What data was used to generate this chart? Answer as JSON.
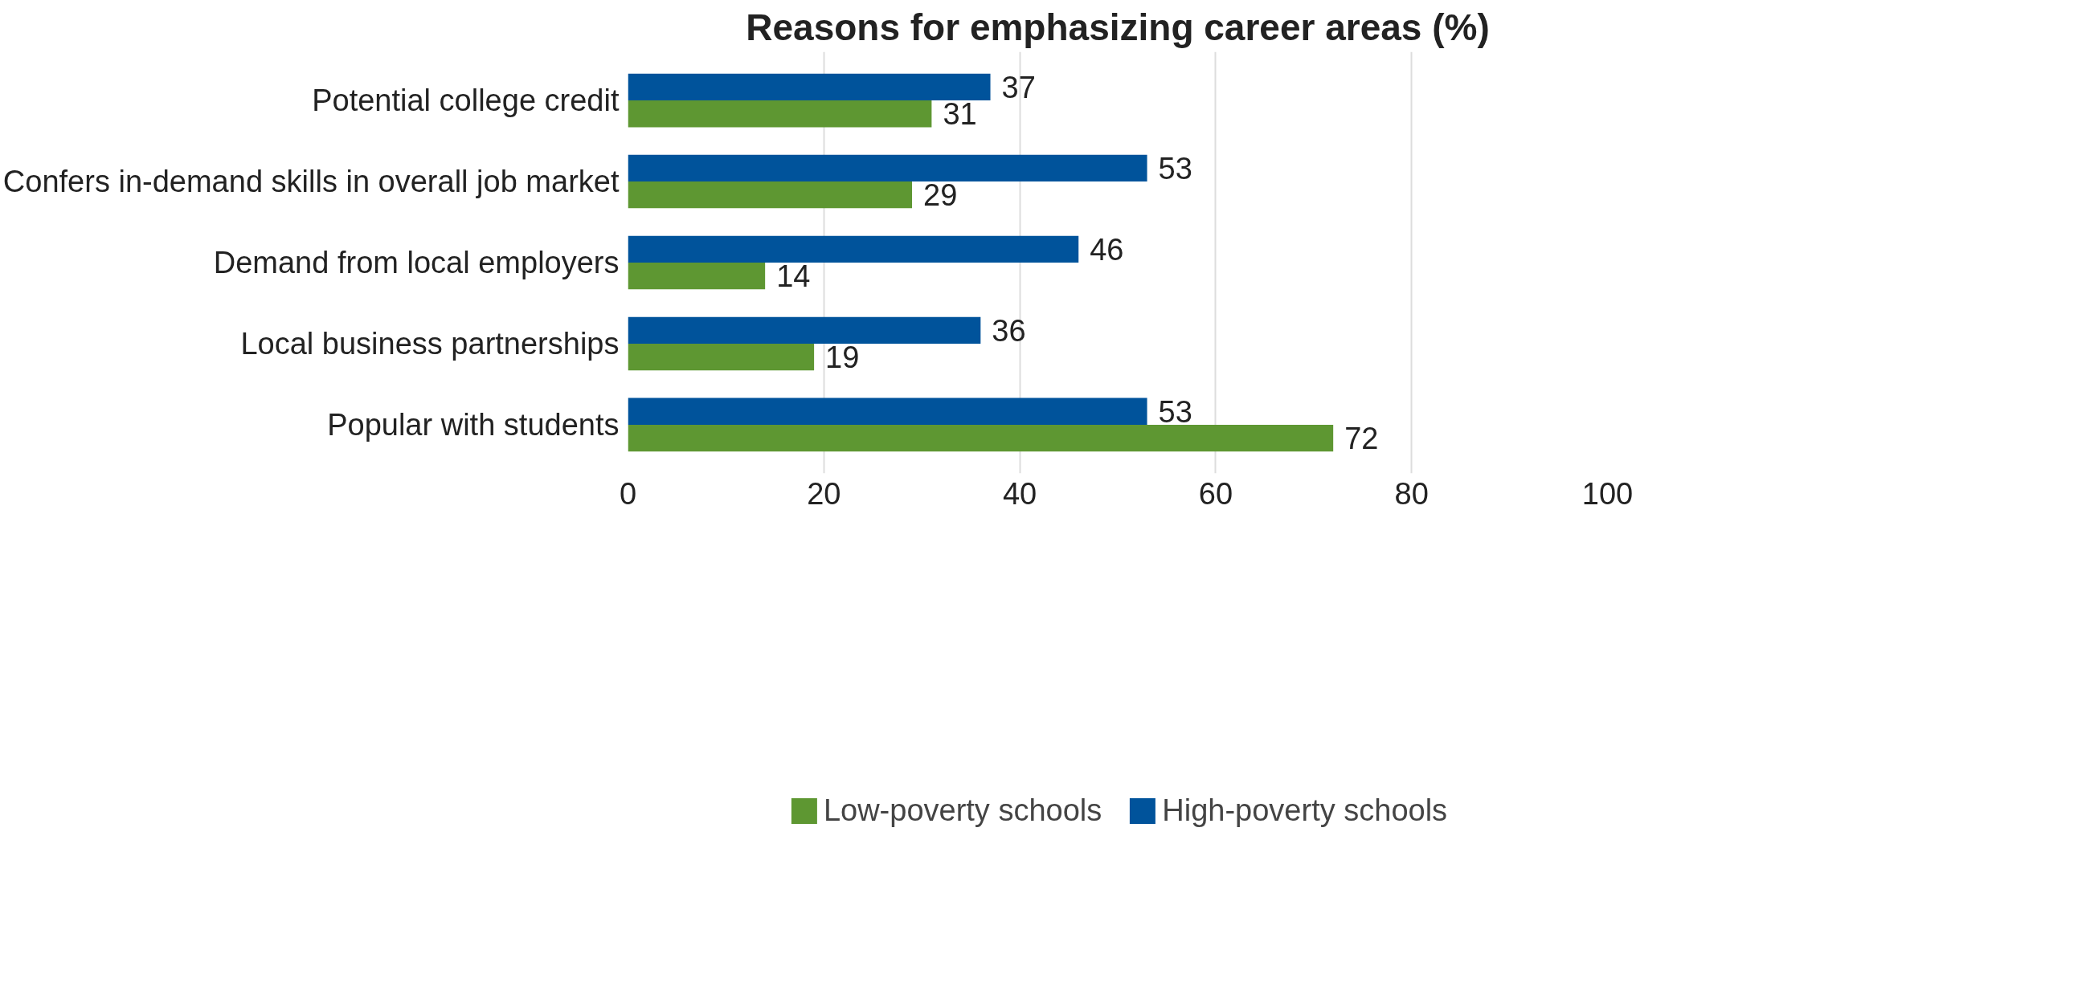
{
  "chart_data": {
    "type": "bar",
    "orientation": "horizontal",
    "title": "Reasons for emphasizing career areas (%)",
    "categories": [
      "Potential college credit",
      "Confers in-demand skills in overall job market",
      "Demand from local employers",
      "Local business partnerships",
      "Popular with students"
    ],
    "series": [
      {
        "name": "Low-poverty schools",
        "color": "#5e9732",
        "values": [
          31,
          29,
          14,
          19,
          72
        ]
      },
      {
        "name": "High-poverty schools",
        "color": "#00539b",
        "values": [
          37,
          53,
          46,
          36,
          53
        ]
      }
    ],
    "xlim": [
      0,
      100
    ],
    "xticks": [
      0,
      20,
      40,
      60,
      80,
      100
    ],
    "grid": "x",
    "legend": "bottom",
    "data_labels": true
  }
}
